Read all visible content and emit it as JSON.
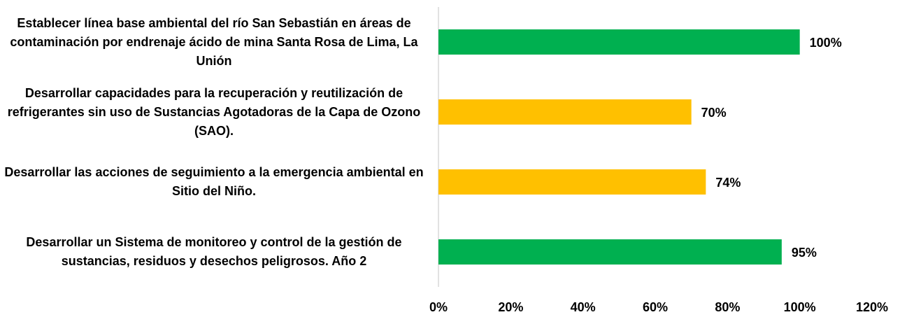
{
  "chart_data": {
    "type": "bar",
    "orientation": "horizontal",
    "categories": [
      "Establecer línea base ambiental del río San Sebastián en áreas de contaminación por endrenaje ácido de mina Santa Rosa de Lima, La Unión",
      "Desarrollar capacidades para la recuperación y reutilización de refrigerantes sin uso de Sustancias Agotadoras de la Capa de Ozono (SAO).",
      "Desarrollar las acciones de seguimiento a la emergencia ambiental en Sitio del Niño.",
      "Desarrollar un Sistema de monitoreo y control de la gestión de sustancias, residuos y desechos peligrosos. Año 2"
    ],
    "values": [
      100,
      70,
      74,
      95
    ],
    "value_labels": [
      "100%",
      "70%",
      "74%",
      "95%"
    ],
    "colors": [
      "#00b050",
      "#ffc000",
      "#ffc000",
      "#00b050"
    ],
    "xlim": [
      0,
      120
    ],
    "xticks": [
      {
        "value": 0,
        "label": "0%"
      },
      {
        "value": 20,
        "label": "20%"
      },
      {
        "value": 40,
        "label": "40%"
      },
      {
        "value": 60,
        "label": "60%"
      },
      {
        "value": 80,
        "label": "80%"
      },
      {
        "value": 100,
        "label": "100%"
      },
      {
        "value": 120,
        "label": "120%"
      }
    ],
    "grid": false
  }
}
